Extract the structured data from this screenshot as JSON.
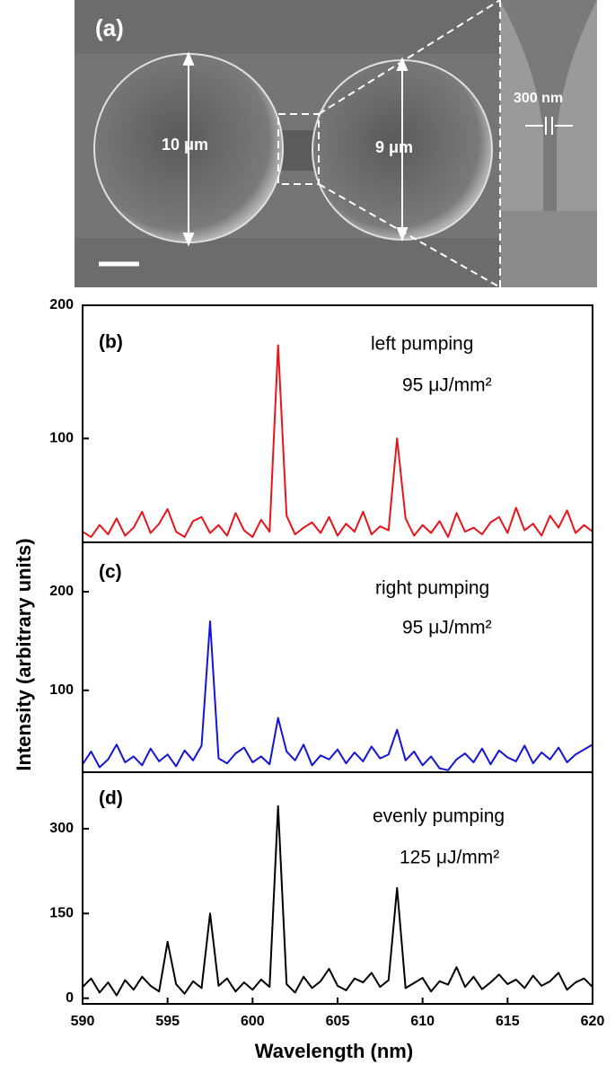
{
  "sem_image": {
    "panel_label": "(a)",
    "left_diameter": "10 μm",
    "right_diameter": "9 μm",
    "gap": "300 nm"
  },
  "axis_labels": {
    "x": "Wavelength (nm)",
    "y": "Intensity (arbitrary units)"
  },
  "chart_data": [
    {
      "type": "line",
      "annotations": [
        "(b)",
        "left pumping",
        "95 μJ/mm²"
      ],
      "x": [
        590,
        590.5,
        591,
        591.5,
        592,
        592.5,
        593,
        593.5,
        594,
        594.5,
        595,
        595.5,
        596,
        596.5,
        597,
        597.5,
        598,
        598.5,
        599,
        599.5,
        600,
        600.5,
        601,
        601.5,
        602,
        602.5,
        603,
        603.5,
        604,
        604.5,
        605,
        605.5,
        606,
        606.5,
        607,
        607.5,
        608,
        608.5,
        609,
        609.5,
        610,
        610.5,
        611,
        611.5,
        612,
        612.5,
        613,
        613.5,
        614,
        614.5,
        615,
        615.5,
        616,
        616.5,
        617,
        617.5,
        618,
        618.5,
        619,
        619.5,
        620
      ],
      "series": [
        {
          "color": "#e8141b",
          "values": [
            30,
            26,
            35,
            28,
            40,
            27,
            33,
            45,
            29,
            36,
            47,
            30,
            26,
            38,
            41,
            29,
            35,
            27,
            44,
            31,
            26,
            39,
            30,
            170,
            42,
            28,
            33,
            37,
            29,
            41,
            27,
            36,
            30,
            45,
            28,
            34,
            31,
            100,
            40,
            27,
            35,
            29,
            38,
            26,
            44,
            30,
            33,
            28,
            37,
            41,
            29,
            48,
            31,
            36,
            27,
            42,
            33,
            46,
            29,
            35,
            30
          ]
        }
      ],
      "xlim": [
        590,
        620
      ],
      "ylim": [
        22,
        200
      ],
      "yticks": [
        100,
        200
      ]
    },
    {
      "type": "line",
      "annotations": [
        "(c)",
        "right pumping",
        "95 μJ/mm²"
      ],
      "x": [
        590,
        590.5,
        591,
        591.5,
        592,
        592.5,
        593,
        593.5,
        594,
        594.5,
        595,
        595.5,
        596,
        596.5,
        597,
        597.5,
        598,
        598.5,
        599,
        599.5,
        600,
        600.5,
        601,
        601.5,
        602,
        602.5,
        603,
        603.5,
        604,
        604.5,
        605,
        605.5,
        606,
        606.5,
        607,
        607.5,
        608,
        608.5,
        609,
        609.5,
        610,
        610.5,
        611,
        611.5,
        612,
        612.5,
        613,
        613.5,
        614,
        614.5,
        615,
        615.5,
        616,
        616.5,
        617,
        617.5,
        618,
        618.5,
        619,
        619.5,
        620
      ],
      "series": [
        {
          "color": "#1414d8",
          "values": [
            25,
            38,
            22,
            30,
            45,
            27,
            33,
            24,
            41,
            28,
            35,
            23,
            39,
            29,
            44,
            170,
            31,
            26,
            36,
            42,
            27,
            33,
            25,
            72,
            38,
            29,
            45,
            24,
            34,
            30,
            40,
            26,
            37,
            28,
            43,
            31,
            35,
            60,
            29,
            38,
            24,
            33,
            21,
            19,
            30,
            36,
            27,
            41,
            25,
            39,
            32,
            28,
            44,
            26,
            37,
            30,
            42,
            27,
            35,
            40,
            45
          ]
        }
      ],
      "xlim": [
        590,
        620
      ],
      "ylim": [
        17,
        250
      ],
      "yticks": [
        100,
        200
      ]
    },
    {
      "type": "line",
      "annotations": [
        "(d)",
        "evenly pumping",
        "125 μJ/mm²"
      ],
      "x": [
        590,
        590.5,
        591,
        591.5,
        592,
        592.5,
        593,
        593.5,
        594,
        594.5,
        595,
        595.5,
        596,
        596.5,
        597,
        597.5,
        598,
        598.5,
        599,
        599.5,
        600,
        600.5,
        601,
        601.5,
        602,
        602.5,
        603,
        603.5,
        604,
        604.5,
        605,
        605.5,
        606,
        606.5,
        607,
        607.5,
        608,
        608.5,
        609,
        609.5,
        610,
        610.5,
        611,
        611.5,
        612,
        612.5,
        613,
        613.5,
        614,
        614.5,
        615,
        615.5,
        616,
        616.5,
        617,
        617.5,
        618,
        618.5,
        619,
        619.5,
        620
      ],
      "series": [
        {
          "color": "#000000",
          "values": [
            20,
            35,
            10,
            28,
            5,
            32,
            15,
            38,
            22,
            12,
            100,
            25,
            8,
            30,
            18,
            150,
            22,
            35,
            12,
            28,
            15,
            33,
            20,
            340,
            25,
            10,
            38,
            18,
            30,
            52,
            22,
            14,
            35,
            28,
            45,
            20,
            32,
            195,
            18,
            27,
            36,
            12,
            30,
            24,
            55,
            20,
            38,
            16,
            28,
            42,
            25,
            33,
            18,
            40,
            22,
            30,
            45,
            15,
            28,
            35,
            20
          ]
        }
      ],
      "xlim": [
        590,
        620
      ],
      "ylim": [
        -10,
        400
      ],
      "yticks": [
        0,
        150,
        300
      ],
      "xticks": [
        590,
        595,
        600,
        605,
        610,
        615,
        620
      ]
    }
  ]
}
